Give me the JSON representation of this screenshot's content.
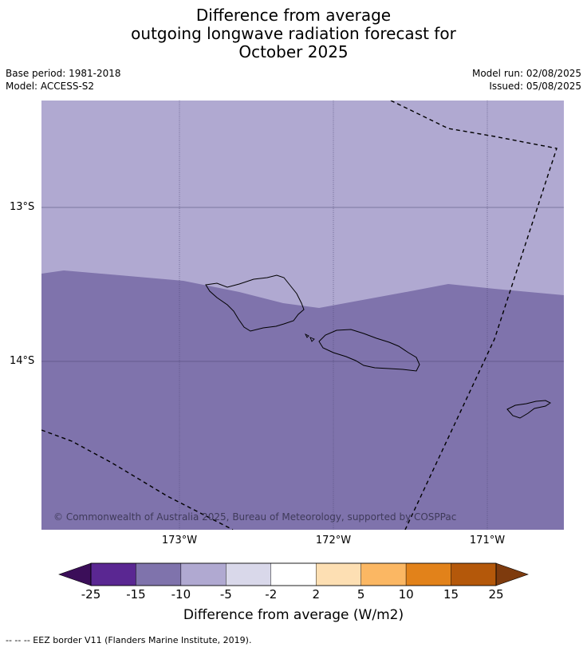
{
  "title": {
    "line1": "Difference from average",
    "line2": "outgoing longwave radiation forecast for",
    "line3": "October 2025"
  },
  "meta": {
    "base_period": "Base period: 1981-2018",
    "model": "Model: ACCESS-S2",
    "model_run": "Model run: 02/08/2025",
    "issued": "Issued: 05/08/2025"
  },
  "map": {
    "lat_labels": [
      "13°S",
      "14°S"
    ],
    "lon_labels": [
      "173°W",
      "172°W",
      "171°W"
    ],
    "credit": "© Commonwealth of Australia 2025, Bureau of Meteorology, supported by COSPPac",
    "colors": {
      "light_purple": "#b0a9d1",
      "mid_purple": "#7f73ac"
    }
  },
  "colorbar": {
    "ticks": [
      "-25",
      "-15",
      "-10",
      "-5",
      "-2",
      "2",
      "5",
      "10",
      "15",
      "25"
    ],
    "colors": [
      "#5a2792",
      "#7f73ac",
      "#b0a9d1",
      "#d9d8ea",
      "#ffffff",
      "#fddfb3",
      "#fbb763",
      "#e2821a",
      "#b4580a"
    ],
    "under_color": "#3b0e59",
    "over_color": "#7e3b0e",
    "label": "Difference from average (W/m2)"
  },
  "footnote": "--  --  -- EEZ border V11 (Flanders Marine Institute, 2019)."
}
